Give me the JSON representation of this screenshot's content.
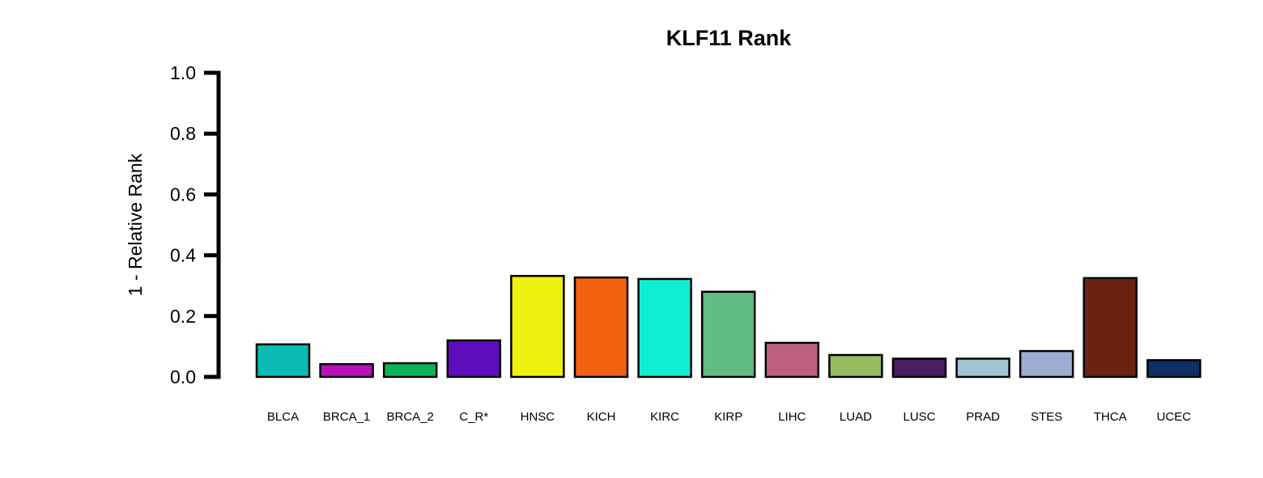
{
  "chart_data": {
    "type": "bar",
    "title": "KLF11 Rank",
    "xlabel": "",
    "ylabel": "1 - Relative Rank",
    "ylim": [
      0,
      1.0
    ],
    "yticks": [
      0.0,
      0.2,
      0.4,
      0.6,
      0.8,
      1.0
    ],
    "ytick_labels": [
      "0.0",
      "0.2",
      "0.4",
      "0.6",
      "0.8",
      "1.0"
    ],
    "grid": false,
    "legend": "none",
    "categories": [
      "BLCA",
      "BRCA_1",
      "BRCA_2",
      "C_R*",
      "HNSC",
      "KICH",
      "KIRC",
      "KIRP",
      "LIHC",
      "LUAD",
      "LUSC",
      "PRAD",
      "STES",
      "THCA",
      "UCEC"
    ],
    "values": [
      0.107,
      0.042,
      0.045,
      0.12,
      0.332,
      0.327,
      0.322,
      0.28,
      0.112,
      0.072,
      0.06,
      0.06,
      0.085,
      0.325,
      0.055
    ],
    "colors": [
      "#0bbab4",
      "#b80fbb",
      "#09b457",
      "#5d0dbb",
      "#eef00e",
      "#f2610f",
      "#0eefd1",
      "#60bc82",
      "#bd5f7e",
      "#96bc62",
      "#4a1e5e",
      "#a0c6d4",
      "#9eacd2",
      "#682410",
      "#0d2f68"
    ]
  }
}
